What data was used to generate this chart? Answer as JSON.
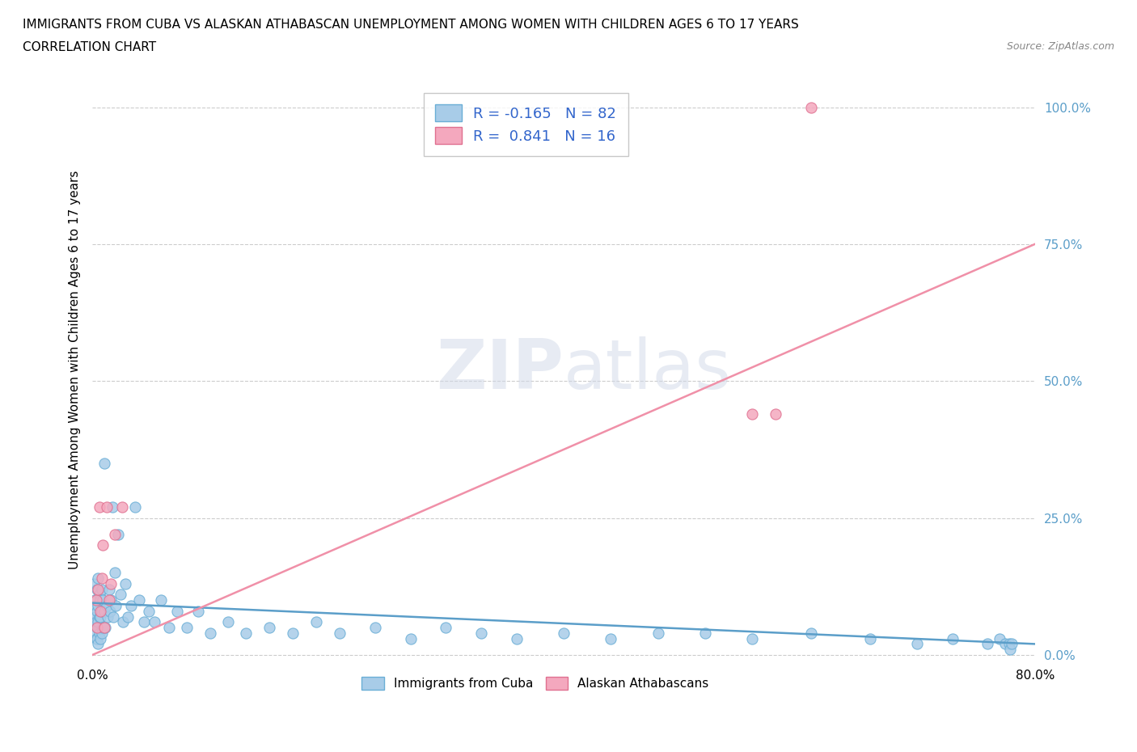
{
  "title_line1": "IMMIGRANTS FROM CUBA VS ALASKAN ATHABASCAN UNEMPLOYMENT AMONG WOMEN WITH CHILDREN AGES 6 TO 17 YEARS",
  "title_line2": "CORRELATION CHART",
  "source_text": "Source: ZipAtlas.com",
  "watermark": "ZIPatlas",
  "xlim": [
    0.0,
    0.8
  ],
  "ylim": [
    -0.01,
    1.05
  ],
  "ytick_vals": [
    0.0,
    0.25,
    0.5,
    0.75,
    1.0
  ],
  "xtick_vals": [
    0.0,
    0.8
  ],
  "cuba_color": "#a8cce8",
  "cuba_edge_color": "#6aaed6",
  "alaska_color": "#f4a8be",
  "alaska_edge_color": "#e07090",
  "cuba_line_color": "#5b9ec9",
  "alaska_line_color": "#f090a8",
  "blue_label": "Immigrants from Cuba",
  "pink_label": "Alaskan Athabascans",
  "ylabel": "Unemployment Among Women with Children Ages 6 to 17 years",
  "grid_color": "#cccccc",
  "background_color": "#ffffff",
  "legend_R_color": "#3366cc",
  "cuba_line_start_y": 0.095,
  "cuba_line_end_y": 0.02,
  "alaska_line_start_y": 0.0,
  "alaska_line_end_y": 0.75,
  "cuba_points_x": [
    0.001,
    0.001,
    0.002,
    0.002,
    0.002,
    0.003,
    0.003,
    0.003,
    0.004,
    0.004,
    0.004,
    0.004,
    0.005,
    0.005,
    0.005,
    0.005,
    0.006,
    0.006,
    0.006,
    0.007,
    0.007,
    0.007,
    0.008,
    0.008,
    0.008,
    0.009,
    0.009,
    0.01,
    0.01,
    0.011,
    0.012,
    0.013,
    0.014,
    0.015,
    0.016,
    0.017,
    0.018,
    0.019,
    0.02,
    0.022,
    0.024,
    0.026,
    0.028,
    0.03,
    0.033,
    0.036,
    0.04,
    0.044,
    0.048,
    0.053,
    0.058,
    0.065,
    0.072,
    0.08,
    0.09,
    0.1,
    0.115,
    0.13,
    0.15,
    0.17,
    0.19,
    0.21,
    0.24,
    0.27,
    0.3,
    0.33,
    0.36,
    0.4,
    0.44,
    0.48,
    0.52,
    0.56,
    0.61,
    0.66,
    0.7,
    0.73,
    0.76,
    0.77,
    0.775,
    0.778,
    0.779,
    0.78
  ],
  "cuba_points_y": [
    0.13,
    0.06,
    0.1,
    0.07,
    0.04,
    0.09,
    0.06,
    0.03,
    0.12,
    0.08,
    0.05,
    0.03,
    0.14,
    0.09,
    0.06,
    0.02,
    0.11,
    0.07,
    0.04,
    0.1,
    0.07,
    0.03,
    0.12,
    0.08,
    0.04,
    0.1,
    0.05,
    0.35,
    0.08,
    0.05,
    0.09,
    0.07,
    0.12,
    0.08,
    0.1,
    0.27,
    0.07,
    0.15,
    0.09,
    0.22,
    0.11,
    0.06,
    0.13,
    0.07,
    0.09,
    0.27,
    0.1,
    0.06,
    0.08,
    0.06,
    0.1,
    0.05,
    0.08,
    0.05,
    0.08,
    0.04,
    0.06,
    0.04,
    0.05,
    0.04,
    0.06,
    0.04,
    0.05,
    0.03,
    0.05,
    0.04,
    0.03,
    0.04,
    0.03,
    0.04,
    0.04,
    0.03,
    0.04,
    0.03,
    0.02,
    0.03,
    0.02,
    0.03,
    0.02,
    0.02,
    0.01,
    0.02
  ],
  "alaska_points_x": [
    0.003,
    0.004,
    0.005,
    0.006,
    0.007,
    0.008,
    0.009,
    0.01,
    0.012,
    0.014,
    0.016,
    0.019,
    0.025,
    0.56,
    0.58,
    0.61
  ],
  "alaska_points_y": [
    0.1,
    0.05,
    0.12,
    0.27,
    0.08,
    0.14,
    0.2,
    0.05,
    0.27,
    0.1,
    0.13,
    0.22,
    0.27,
    0.44,
    0.44,
    1.0
  ]
}
